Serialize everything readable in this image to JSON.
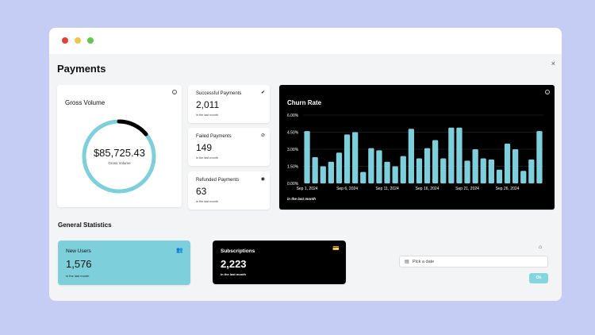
{
  "page": {
    "title": "Payments",
    "close_glyph": "×"
  },
  "gross_volume": {
    "label": "Gross Volume",
    "amount": "$85,725.43",
    "sub": "Gross Volume",
    "progress_fraction": 0.14,
    "ring_color": "#7dcfdb",
    "arc_color": "#000000"
  },
  "stats": [
    {
      "label": "Successful Payments",
      "value": "2,011",
      "sub": "in the last month",
      "icon": "check-badge-icon",
      "glyph": "✔"
    },
    {
      "label": "Failed Payments",
      "value": "149",
      "sub": "in the last month",
      "icon": "ban-icon",
      "glyph": "⊘"
    },
    {
      "label": "Refunded Payments",
      "value": "63",
      "sub": "in the last month",
      "icon": "refund-icon",
      "glyph": "◉"
    }
  ],
  "chart_data": {
    "type": "bar",
    "title": "Churn Rate",
    "subtitle": "in the last month",
    "y_ticks": [
      "0.00%",
      "1.50%",
      "3.00%",
      "4.50%",
      "6.00%"
    ],
    "ylim": [
      0,
      6
    ],
    "x_tick_labels": [
      "Sep 1, 2024",
      "Sep 6, 2024",
      "Sep 11, 2024",
      "Sep 16, 2024",
      "Sep 21, 2024",
      "Sep 26, 2024"
    ],
    "x_tick_indices": [
      0,
      5,
      10,
      15,
      20,
      25
    ],
    "values": [
      4.6,
      2.3,
      1.5,
      1.9,
      2.7,
      4.3,
      4.5,
      1.0,
      3.1,
      2.9,
      1.9,
      1.5,
      2.4,
      4.8,
      2.2,
      3.1,
      3.8,
      2.2,
      4.9,
      4.9,
      2.0,
      3.0,
      2.2,
      2.1,
      1.2,
      3.5,
      3.0,
      1.1,
      2.1,
      4.6
    ],
    "bar_color": "#7dcfdb",
    "grid": true,
    "info_glyph": "i"
  },
  "general": {
    "title": "General Statistics"
  },
  "new_users": {
    "label": "New Users",
    "value": "1,576",
    "sub": "in the last month",
    "glyph": "👥"
  },
  "subscriptions": {
    "label": "Subscriptions",
    "value": "2,223",
    "sub": "in the last month",
    "glyph": "💳"
  },
  "date_picker": {
    "placeholder": "Pick a date",
    "ok_label": "Ok",
    "cal_glyph": "▤",
    "home_glyph": "⌂"
  }
}
